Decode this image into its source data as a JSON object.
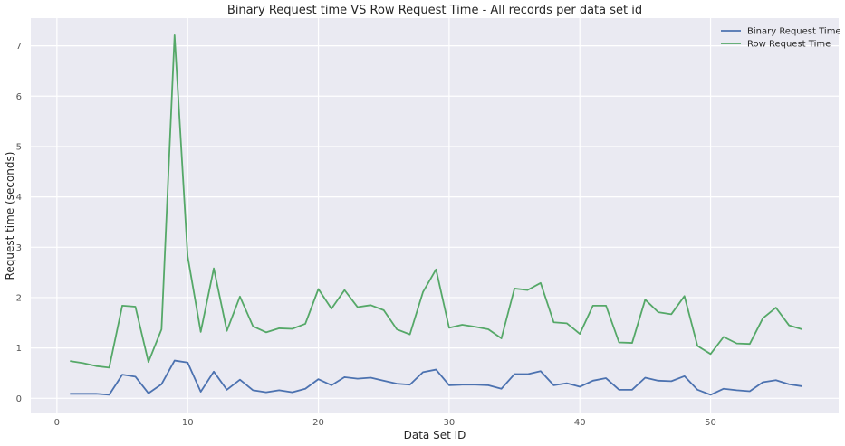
{
  "chart_data": {
    "type": "line",
    "title": "Binary Request time VS Row Request Time - All records per data set id",
    "xlabel": "Data Set ID",
    "ylabel": "Request time (seconds)",
    "xlim": [
      -2,
      59.8
    ],
    "ylim": [
      -0.3,
      7.55
    ],
    "xticks": [
      0,
      10,
      20,
      30,
      40,
      50
    ],
    "yticks": [
      0,
      1,
      2,
      3,
      4,
      5,
      6,
      7
    ],
    "grid": true,
    "legend_position": "top-right",
    "x": [
      1,
      2,
      3,
      4,
      5,
      6,
      7,
      8,
      9,
      10,
      11,
      12,
      13,
      14,
      15,
      16,
      17,
      18,
      19,
      20,
      21,
      22,
      23,
      24,
      25,
      26,
      27,
      28,
      29,
      30,
      31,
      32,
      33,
      34,
      35,
      36,
      37,
      38,
      39,
      40,
      41,
      42,
      43,
      44,
      45,
      46,
      47,
      48,
      49,
      50,
      51,
      52,
      53,
      54,
      55,
      56,
      57
    ],
    "series": [
      {
        "name": "Binary Request Time",
        "color": "#4c72b0",
        "values": [
          0.09,
          0.09,
          0.09,
          0.07,
          0.47,
          0.43,
          0.1,
          0.28,
          0.75,
          0.71,
          0.13,
          0.53,
          0.17,
          0.37,
          0.16,
          0.12,
          0.16,
          0.12,
          0.19,
          0.38,
          0.26,
          0.42,
          0.39,
          0.41,
          0.35,
          0.29,
          0.27,
          0.52,
          0.57,
          0.26,
          0.27,
          0.27,
          0.26,
          0.19,
          0.48,
          0.48,
          0.54,
          0.26,
          0.3,
          0.23,
          0.35,
          0.4,
          0.17,
          0.17,
          0.41,
          0.35,
          0.34,
          0.44,
          0.17,
          0.07,
          0.19,
          0.16,
          0.14,
          0.32,
          0.36,
          0.28,
          0.24
        ]
      },
      {
        "name": "Row Request Time",
        "color": "#55a868",
        "values": [
          0.74,
          0.7,
          0.64,
          0.61,
          1.84,
          1.82,
          0.72,
          1.37,
          7.21,
          2.82,
          1.32,
          2.58,
          1.34,
          2.02,
          1.43,
          1.31,
          1.39,
          1.38,
          1.48,
          2.17,
          1.78,
          2.15,
          1.81,
          1.85,
          1.75,
          1.37,
          1.27,
          2.11,
          2.56,
          1.4,
          1.46,
          1.42,
          1.37,
          1.19,
          2.18,
          2.15,
          2.29,
          1.51,
          1.49,
          1.28,
          1.84,
          1.84,
          1.11,
          1.1,
          1.96,
          1.71,
          1.67,
          2.03,
          1.04,
          0.88,
          1.22,
          1.09,
          1.08,
          1.59,
          1.8,
          1.45,
          1.37
        ]
      }
    ]
  }
}
